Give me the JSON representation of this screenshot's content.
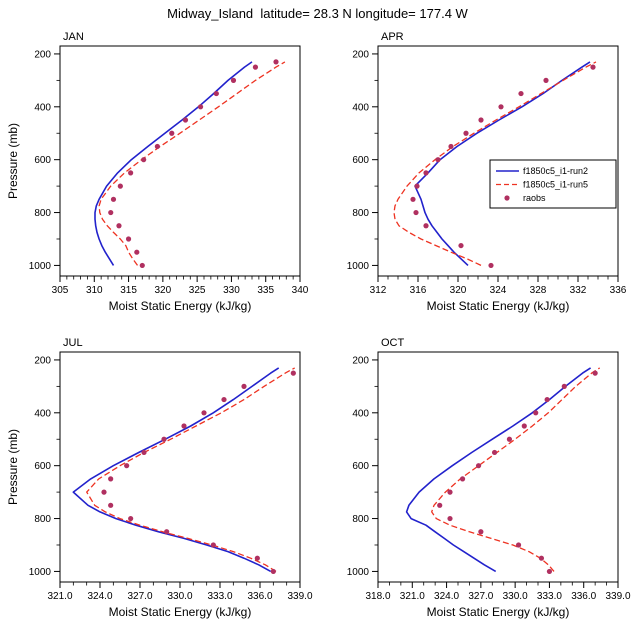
{
  "page": {
    "title": "Midway_Island  latitude= 28.3 N longitude= 177.4 W"
  },
  "colors": {
    "run2": "#2222cc",
    "run5": "#ee3322",
    "raobs": "#b03060",
    "axis": "#000000"
  },
  "chart_data": [
    {
      "type": "line",
      "panel": "JAN",
      "title": "JAN",
      "xlabel": "Moist Static Energy (kJ/kg)",
      "ylabel": "Pressure (mb)",
      "xlim": [
        305,
        340
      ],
      "xtick_values": [
        305,
        310,
        315,
        320,
        325,
        330,
        335,
        340
      ],
      "xtick_labels": [
        "305",
        "310",
        "315",
        "320",
        "325",
        "330",
        "335",
        "340"
      ],
      "x_minor_step": 1,
      "ylim": [
        170,
        1040
      ],
      "ytick_values": [
        200,
        400,
        600,
        800,
        1000
      ],
      "ytick_labels": [
        "200",
        "400",
        "600",
        "800",
        "1000"
      ],
      "y_minor_step": 100,
      "show_legend": false,
      "series": [
        {
          "name": "f1850c5_i1-run2",
          "style": "solid",
          "color_key": "run2",
          "pressure": [
            1000,
            975,
            950,
            925,
            900,
            875,
            850,
            825,
            800,
            775,
            750,
            700,
            650,
            600,
            550,
            500,
            450,
            400,
            350,
            300,
            250,
            230
          ],
          "values": [
            312.8,
            312.2,
            311.6,
            311.1,
            310.7,
            310.4,
            310.2,
            310.1,
            310.1,
            310.3,
            310.7,
            311.8,
            313.4,
            315.4,
            317.8,
            320.3,
            322.8,
            325.2,
            327.4,
            329.5,
            331.9,
            333.0
          ]
        },
        {
          "name": "f1850c5_i1-run5",
          "style": "dashed",
          "color_key": "run5",
          "pressure": [
            1000,
            975,
            950,
            925,
            900,
            875,
            850,
            825,
            800,
            775,
            750,
            700,
            650,
            600,
            550,
            500,
            450,
            400,
            350,
            300,
            250,
            230
          ],
          "values": [
            316.3,
            315.6,
            315.0,
            314.6,
            313.8,
            312.8,
            311.9,
            311.2,
            310.8,
            310.7,
            311.0,
            312.4,
            314.4,
            316.9,
            319.6,
            322.5,
            325.3,
            328.1,
            330.8,
            333.5,
            336.5,
            337.8
          ]
        },
        {
          "name": "raobs",
          "style": "dots",
          "color_key": "raobs",
          "pressure": [
            1000,
            950,
            900,
            850,
            800,
            750,
            700,
            650,
            600,
            550,
            500,
            450,
            400,
            350,
            300,
            250,
            230
          ],
          "values": [
            317.0,
            316.2,
            315.0,
            313.6,
            312.4,
            312.8,
            313.8,
            315.3,
            317.2,
            319.2,
            321.3,
            323.3,
            325.5,
            327.8,
            330.3,
            333.5,
            336.5
          ]
        }
      ]
    },
    {
      "type": "line",
      "panel": "APR",
      "title": "APR",
      "xlabel": "Moist Static Energy (kJ/kg)",
      "ylabel": "",
      "xlim": [
        312,
        336
      ],
      "xtick_values": [
        312,
        316,
        320,
        324,
        328,
        332,
        336
      ],
      "xtick_labels": [
        "312",
        "316",
        "320",
        "324",
        "328",
        "332",
        "336"
      ],
      "x_minor_step": 1,
      "ylim": [
        170,
        1040
      ],
      "ytick_values": [
        200,
        400,
        600,
        800,
        1000
      ],
      "ytick_labels": [
        "200",
        "400",
        "600",
        "800",
        "1000"
      ],
      "y_minor_step": 100,
      "show_legend": true,
      "legend_position": "right-middle",
      "series": [
        {
          "name": "f1850c5_i1-run2",
          "style": "solid",
          "color_key": "run2",
          "pressure": [
            1000,
            975,
            950,
            925,
            900,
            875,
            850,
            825,
            800,
            775,
            750,
            700,
            650,
            600,
            550,
            500,
            450,
            400,
            350,
            300,
            250,
            230
          ],
          "values": [
            321.0,
            320.3,
            319.6,
            319.0,
            318.4,
            317.9,
            317.4,
            317.0,
            316.7,
            316.5,
            316.3,
            315.7,
            317.0,
            318.2,
            319.9,
            321.9,
            324.1,
            326.4,
            328.5,
            330.4,
            332.4,
            333.2
          ]
        },
        {
          "name": "f1850c5_i1-run5",
          "style": "dashed",
          "color_key": "run5",
          "pressure": [
            1000,
            975,
            950,
            925,
            900,
            875,
            850,
            825,
            800,
            775,
            750,
            700,
            650,
            600,
            550,
            500,
            450,
            400,
            350,
            300,
            250,
            230
          ],
          "values": [
            322.3,
            320.9,
            319.3,
            317.8,
            316.3,
            315.1,
            314.1,
            313.7,
            313.6,
            313.7,
            314.0,
            314.9,
            316.1,
            317.7,
            319.5,
            321.6,
            323.8,
            326.1,
            328.3,
            330.5,
            332.8,
            333.8
          ]
        },
        {
          "name": "raobs",
          "style": "dots",
          "color_key": "raobs",
          "pressure": [
            1000,
            925,
            850,
            800,
            750,
            700,
            650,
            600,
            550,
            500,
            450,
            400,
            350,
            300,
            250
          ],
          "values": [
            323.3,
            320.3,
            316.8,
            315.8,
            315.5,
            315.9,
            316.8,
            318.0,
            319.3,
            320.8,
            322.3,
            324.3,
            326.3,
            328.8,
            333.5
          ]
        }
      ]
    },
    {
      "type": "line",
      "panel": "JUL",
      "title": "JUL",
      "xlabel": "Moist Static Energy (kJ/kg)",
      "ylabel": "Pressure (mb)",
      "xlim": [
        321,
        339
      ],
      "xtick_values": [
        321,
        324,
        327,
        330,
        333,
        336,
        339
      ],
      "xtick_labels": [
        "321.0",
        "324.0",
        "327.0",
        "330.0",
        "333.0",
        "336.0",
        "339.0"
      ],
      "x_minor_step": 1,
      "ylim": [
        170,
        1040
      ],
      "ytick_values": [
        200,
        400,
        600,
        800,
        1000
      ],
      "ytick_labels": [
        "200",
        "400",
        "600",
        "800",
        "1000"
      ],
      "y_minor_step": 100,
      "show_legend": false,
      "series": [
        {
          "name": "f1850c5_i1-run2",
          "style": "solid",
          "color_key": "run2",
          "pressure": [
            1000,
            975,
            950,
            925,
            900,
            875,
            850,
            825,
            800,
            775,
            750,
            700,
            650,
            600,
            550,
            500,
            450,
            400,
            350,
            300,
            250,
            230
          ],
          "values": [
            336.8,
            335.9,
            334.8,
            333.6,
            332.0,
            330.3,
            328.4,
            326.7,
            325.2,
            324.0,
            323.1,
            322.0,
            323.3,
            325.0,
            326.9,
            328.9,
            330.8,
            332.5,
            334.0,
            335.4,
            336.8,
            337.4
          ]
        },
        {
          "name": "f1850c5_i1-run5",
          "style": "dashed",
          "color_key": "run5",
          "pressure": [
            1000,
            975,
            950,
            925,
            900,
            875,
            850,
            825,
            800,
            775,
            750,
            700,
            650,
            600,
            550,
            500,
            450,
            400,
            350,
            300,
            250,
            230
          ],
          "values": [
            337.2,
            336.4,
            335.3,
            334.0,
            332.4,
            330.6,
            328.7,
            327.0,
            325.5,
            324.4,
            323.6,
            323.0,
            323.9,
            325.5,
            327.3,
            329.3,
            331.2,
            333.1,
            334.8,
            336.3,
            337.9,
            338.6
          ]
        },
        {
          "name": "raobs",
          "style": "dots",
          "color_key": "raobs",
          "pressure": [
            1000,
            950,
            900,
            850,
            800,
            750,
            700,
            650,
            600,
            550,
            500,
            450,
            400,
            350,
            300,
            250
          ],
          "values": [
            337.0,
            335.8,
            332.5,
            329.0,
            326.3,
            324.8,
            324.3,
            324.8,
            326.0,
            327.3,
            328.8,
            330.3,
            331.8,
            333.3,
            334.8,
            338.5
          ]
        }
      ]
    },
    {
      "type": "line",
      "panel": "OCT",
      "title": "OCT",
      "xlabel": "Moist Static Energy (kJ/kg)",
      "ylabel": "",
      "xlim": [
        318,
        339
      ],
      "xtick_values": [
        318,
        321,
        324,
        327,
        330,
        333,
        336,
        339
      ],
      "xtick_labels": [
        "318.0",
        "321.0",
        "324.0",
        "327.0",
        "330.0",
        "333.0",
        "336.0",
        "339.0"
      ],
      "x_minor_step": 1,
      "ylim": [
        170,
        1040
      ],
      "ytick_values": [
        200,
        400,
        600,
        800,
        1000
      ],
      "ytick_labels": [
        "200",
        "400",
        "600",
        "800",
        "1000"
      ],
      "y_minor_step": 100,
      "show_legend": false,
      "series": [
        {
          "name": "f1850c5_i1-run2",
          "style": "solid",
          "color_key": "run2",
          "pressure": [
            1000,
            975,
            950,
            925,
            900,
            875,
            850,
            825,
            800,
            775,
            750,
            700,
            650,
            600,
            550,
            500,
            450,
            400,
            350,
            300,
            250,
            230
          ],
          "values": [
            328.3,
            327.3,
            326.4,
            325.5,
            324.6,
            323.8,
            323.0,
            322.2,
            320.9,
            320.5,
            320.7,
            321.6,
            322.9,
            324.5,
            326.2,
            328.0,
            329.8,
            331.5,
            333.0,
            334.4,
            335.9,
            336.6
          ]
        },
        {
          "name": "f1850c5_i1-run5",
          "style": "dashed",
          "color_key": "run5",
          "pressure": [
            1000,
            975,
            950,
            925,
            900,
            875,
            850,
            825,
            800,
            775,
            750,
            700,
            650,
            600,
            550,
            500,
            450,
            400,
            350,
            300,
            250,
            230
          ],
          "values": [
            333.4,
            332.9,
            332.2,
            331.2,
            329.8,
            327.9,
            326.0,
            324.3,
            323.1,
            322.7,
            322.9,
            323.9,
            325.2,
            326.8,
            328.4,
            330.0,
            331.5,
            332.9,
            334.1,
            335.3,
            336.7,
            337.4
          ]
        },
        {
          "name": "raobs",
          "style": "dots",
          "color_key": "raobs",
          "pressure": [
            1000,
            950,
            900,
            850,
            800,
            750,
            700,
            650,
            600,
            550,
            500,
            450,
            400,
            350,
            300,
            250
          ],
          "values": [
            333.0,
            332.3,
            330.3,
            327.0,
            324.3,
            323.4,
            324.3,
            325.4,
            326.8,
            328.2,
            329.5,
            330.8,
            331.8,
            332.8,
            334.3,
            337.0
          ]
        }
      ]
    }
  ]
}
